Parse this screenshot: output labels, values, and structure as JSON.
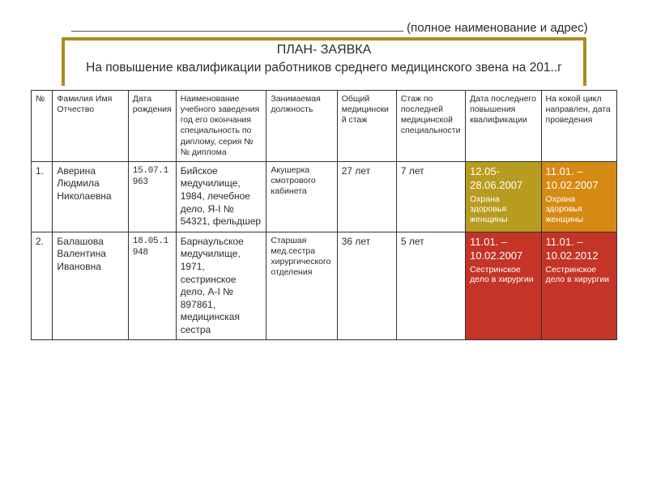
{
  "header": {
    "address_suffix": "(полное наименование и адрес)",
    "title1": "ПЛАН- ЗАЯВКА",
    "title2": "На повышение квалификации работников среднего медицинского звена на 201..г"
  },
  "columns": {
    "c0": "№",
    "c1": "Фамилия Имя Отчество",
    "c2": "Дата рождения",
    "c3": "Наименование учебного заведения год его окончания специальность по диплому, серия №№ диплома",
    "c4": "Занимаемая должность",
    "c5": "Общий медицинский стаж",
    "c6": "Стаж по последней медицинской специальности",
    "c7": "Дата последнего повышения квалификации",
    "c8": "На кокой цикл направлен, дата проведения"
  },
  "rows": [
    {
      "n": "1.",
      "fio": "Аверина Людмила Николаевна",
      "dob": "15.07.1963",
      "edu": "Бийское медучилище, 1984, лечебное дело, Я-I № 54321, фельдшер",
      "pos": "Акушерка смотрового кабинета",
      "total": "27 лет",
      "spec": "7 лет",
      "last": {
        "date": "12.05-28.06.2007",
        "txt": "Охрана здоровья женщины",
        "cls": "yellow"
      },
      "next": {
        "date": "11.01. – 10.02.2007",
        "txt": "Охрана здоровья женщины",
        "cls": "orange"
      }
    },
    {
      "n": "2.",
      "fio": "Балашова Валентина Ивановна",
      "dob": "18.05.1948",
      "edu": "Барнаульское медучилище, 1971, сестринское дело, А-I № 897861, медицинская сестра",
      "pos": "Старшая мед.сестра хирургического отделения",
      "total": "36 лет",
      "spec": "5 лет",
      "last": {
        "date": "11.01. – 10.02.2007",
        "txt": "Сестринское дело в хирургии",
        "cls": "red"
      },
      "next": {
        "date": "11.01. – 10.02.2012",
        "txt": "Сестринское дело в хирургии",
        "cls": "red"
      }
    }
  ],
  "col_widths": [
    "26px",
    "92px",
    "58px",
    "110px",
    "86px",
    "72px",
    "84px",
    "92px",
    "92px"
  ]
}
